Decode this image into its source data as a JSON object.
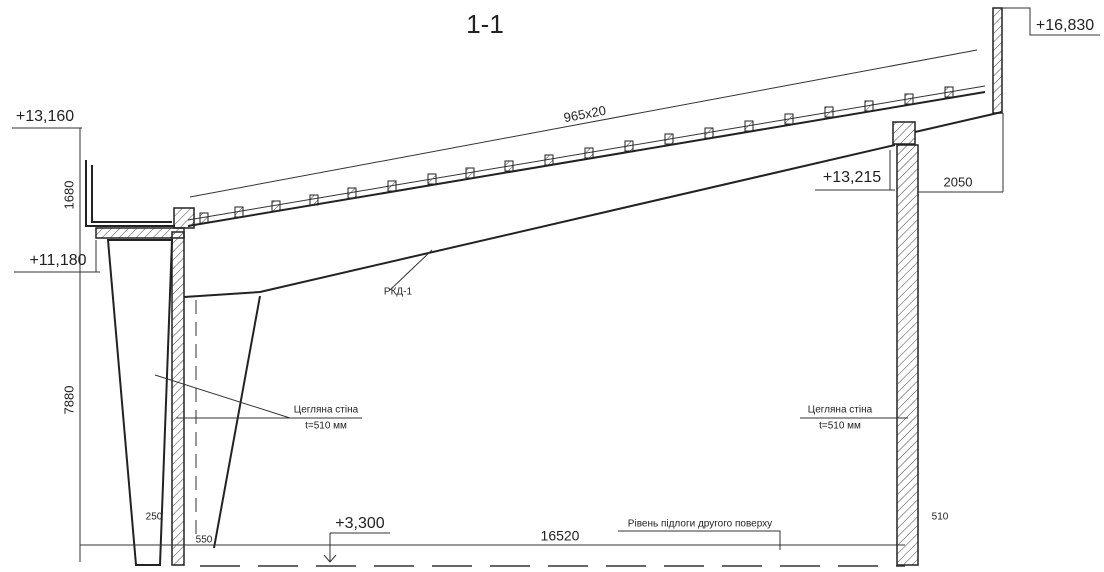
{
  "title": "1-1",
  "elevations": {
    "top_right": "+16,830",
    "top_left": "+13,160",
    "beam_support": "+13,215",
    "slab_left": "+11,180",
    "floor": "+3,300"
  },
  "dimensions": {
    "roof_length": "965x20",
    "parapet_height": "1680",
    "overhang": "2050",
    "wall_height": "7880",
    "column_base": "250",
    "beam_seat": "550",
    "span": "16520",
    "wall_thickness": "510"
  },
  "labels": {
    "beam": "РКД-1",
    "wall_left": "Цегляна стіна",
    "wall_left_thickness": "t=510 мм",
    "wall_right": "Цегляна стіна",
    "wall_right_thickness": "t=510 мм",
    "floor_level": "Рівень підлоги другого поверху"
  }
}
